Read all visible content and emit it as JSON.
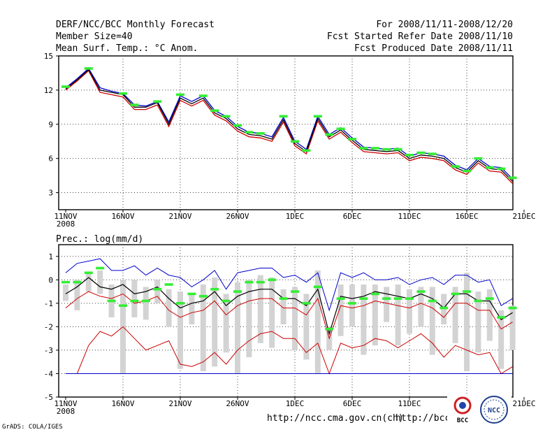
{
  "header": {
    "title": "DERF/NCC/BCC Monthly Forecast",
    "member_size": "Member Size=40",
    "variable": "Mean Surf. Temp.: °C Anom.",
    "period": "For 2008/11/11-2008/12/20",
    "started": "Fcst Started Refer Date 2008/11/10",
    "produced": "Fcst Produced Date 2008/11/11"
  },
  "footer": {
    "credit": "GrADS: COLA/IGES",
    "url1": "http://ncc.cma.gov.cn(ch)",
    "url2": "http://bcc.c",
    "logo_bcc": "BCC",
    "logo_ncc": "NCC"
  },
  "colors": {
    "mean": "#000000",
    "member_high": "#0000cc",
    "member_low": "#cc0000",
    "obs": "#33ee33",
    "spread": "#d3d3d3",
    "grid": "#444444"
  },
  "chart_data": [
    {
      "type": "line",
      "title": "Mean Surf. Temp.: °C Anom.",
      "x_labels": [
        "11NOV",
        "16NOV",
        "21NOV",
        "26NOV",
        "1DEC",
        "6DEC",
        "11DEC",
        "16DEC",
        "21DEC"
      ],
      "x_sublabel": "2008",
      "ylim": [
        1.5,
        15
      ],
      "yticks": [
        "15",
        "12",
        "9",
        "6",
        "3"
      ],
      "x_start_day": 0,
      "mean": [
        12.1,
        12.9,
        13.8,
        12.0,
        11.8,
        11.6,
        10.5,
        10.5,
        10.9,
        9.0,
        11.3,
        10.8,
        11.3,
        10.0,
        9.5,
        8.6,
        8.1,
        8.0,
        7.7,
        9.4,
        7.3,
        6.6,
        9.5,
        7.9,
        8.5,
        7.6,
        6.8,
        6.7,
        6.6,
        6.7,
        6.0,
        6.3,
        6.2,
        6.0,
        5.2,
        4.8,
        5.8,
        5.1,
        5.0,
        4.0
      ],
      "upper": [
        12.2,
        13.0,
        13.9,
        12.2,
        11.9,
        11.7,
        10.7,
        10.6,
        11.0,
        9.2,
        11.5,
        11.0,
        11.5,
        10.2,
        9.7,
        8.8,
        8.3,
        8.2,
        7.9,
        9.6,
        7.5,
        6.8,
        9.7,
        8.1,
        8.7,
        7.8,
        7.0,
        6.9,
        6.8,
        6.9,
        6.2,
        6.5,
        6.4,
        6.2,
        5.4,
        5.0,
        6.0,
        5.3,
        5.2,
        4.2
      ],
      "lower": [
        12.0,
        12.8,
        13.7,
        11.8,
        11.6,
        11.4,
        10.3,
        10.3,
        10.7,
        8.8,
        11.1,
        10.6,
        11.1,
        9.8,
        9.3,
        8.4,
        7.9,
        7.8,
        7.5,
        9.2,
        7.1,
        6.4,
        9.3,
        7.7,
        8.3,
        7.4,
        6.6,
        6.5,
        6.4,
        6.5,
        5.8,
        6.1,
        6.0,
        5.8,
        5.0,
        4.6,
        5.6,
        4.9,
        4.8,
        3.8
      ],
      "obs": [
        12.3,
        null,
        13.9,
        null,
        null,
        11.7,
        10.7,
        null,
        11.0,
        null,
        11.6,
        null,
        11.5,
        10.2,
        9.7,
        8.9,
        8.3,
        8.2,
        null,
        9.7,
        7.5,
        6.7,
        9.7,
        8.1,
        8.6,
        7.7,
        6.9,
        6.9,
        6.8,
        6.8,
        6.3,
        6.5,
        6.4,
        null,
        5.3,
        4.9,
        6.0,
        5.2,
        5.1,
        4.3
      ]
    },
    {
      "type": "line",
      "title": "Prec.: log(mm/d)",
      "x_labels": [
        "11NOV",
        "16NOV",
        "21NOV",
        "26NOV",
        "1DEC",
        "6DEC",
        "11DEC",
        "16DEC",
        "21DEC"
      ],
      "x_sublabel": "2008",
      "ylim": [
        -5,
        1.5
      ],
      "yticks": [
        "1",
        "0",
        "-1",
        "-2",
        "-3",
        "-4",
        "-5"
      ],
      "mean": [
        -0.6,
        -0.3,
        0.1,
        -0.3,
        -0.4,
        -0.2,
        -0.6,
        -0.5,
        -0.3,
        -0.8,
        -1.2,
        -1.0,
        -0.9,
        -0.5,
        -1.1,
        -0.7,
        -0.5,
        -0.4,
        -0.4,
        -0.8,
        -0.8,
        -1.1,
        -0.4,
        -2.3,
        -0.7,
        -0.8,
        -0.7,
        -0.5,
        -0.6,
        -0.7,
        -0.8,
        -0.6,
        -0.8,
        -1.2,
        -0.6,
        -0.6,
        -0.9,
        -0.9,
        -1.7,
        -1.4
      ],
      "ens_max": [
        0.3,
        0.7,
        0.8,
        0.9,
        0.4,
        0.4,
        0.6,
        0.2,
        0.5,
        0.2,
        0.1,
        -0.3,
        0.0,
        0.4,
        -0.4,
        0.3,
        0.4,
        0.5,
        0.5,
        0.1,
        0.2,
        -0.1,
        0.3,
        -1.3,
        0.3,
        0.1,
        0.3,
        0.0,
        0.0,
        0.1,
        -0.2,
        0.0,
        0.1,
        -0.2,
        0.2,
        0.2,
        -0.1,
        0.0,
        -1.1,
        -0.8
      ],
      "ens_p75": [
        -1.2,
        -0.8,
        -0.5,
        -0.7,
        -0.8,
        -0.6,
        -1.0,
        -0.9,
        -0.7,
        -1.3,
        -1.6,
        -1.4,
        -1.3,
        -0.9,
        -1.5,
        -1.1,
        -0.9,
        -0.8,
        -0.8,
        -1.2,
        -1.2,
        -1.5,
        -0.8,
        -2.5,
        -1.1,
        -1.2,
        -1.1,
        -0.9,
        -1.0,
        -1.1,
        -1.2,
        -1.0,
        -1.2,
        -1.6,
        -1.0,
        -1.0,
        -1.3,
        -1.3,
        -2.1,
        -1.8
      ],
      "ens_min_line": [
        -4.0,
        -4.0,
        -2.8,
        -2.2,
        -2.4,
        -2.0,
        -2.5,
        -3.0,
        -2.8,
        -2.6,
        -3.6,
        -3.7,
        -3.5,
        -3.1,
        -3.6,
        -3.0,
        -2.6,
        -2.3,
        -2.2,
        -2.5,
        -2.5,
        -3.1,
        -2.7,
        -4.0,
        -2.7,
        -2.9,
        -2.8,
        -2.5,
        -2.6,
        -2.9,
        -2.6,
        -2.3,
        -2.7,
        -3.3,
        -2.8,
        -3.0,
        -3.2,
        -3.1,
        -4.0,
        -3.7
      ],
      "ens_floor": -4.0,
      "spread_top": [
        -0.2,
        0.0,
        0.3,
        0.4,
        -0.2,
        0.0,
        0.0,
        -0.3,
        0.0,
        -0.4,
        -0.5,
        -0.6,
        -0.2,
        0.1,
        -0.6,
        -0.1,
        0.0,
        0.2,
        0.1,
        -0.4,
        -0.3,
        -0.6,
        0.4,
        -2.0,
        -0.2,
        -0.2,
        -0.2,
        -0.2,
        -0.3,
        -0.2,
        -0.4,
        -0.3,
        -0.3,
        -0.6,
        -0.3,
        0.3,
        -0.5,
        -0.4,
        -1.3,
        -1.1
      ],
      "spread_bottom": [
        -0.9,
        -1.3,
        -0.5,
        -0.6,
        -1.6,
        -4.0,
        -1.6,
        -1.7,
        -1.0,
        -2.0,
        -3.8,
        -1.9,
        -3.9,
        -3.7,
        -3.1,
        -4.0,
        -3.3,
        -2.7,
        -2.9,
        -1.9,
        -3.0,
        -3.4,
        -4.0,
        -3.0,
        -2.4,
        -2.0,
        -3.2,
        -2.8,
        -1.8,
        -2.8,
        -2.3,
        -2.0,
        -3.2,
        -1.9,
        -2.7,
        -3.9,
        -3.1,
        -2.6,
        -3.8,
        -3.0
      ],
      "obs": [
        -0.1,
        -0.1,
        0.3,
        0.5,
        -0.9,
        -1.1,
        -0.9,
        -0.9,
        -0.4,
        -0.2,
        -1.0,
        -0.6,
        -0.7,
        -0.4,
        -0.9,
        -0.5,
        -0.1,
        -0.1,
        0.0,
        -0.8,
        -0.5,
        -1.0,
        -0.3,
        -2.1,
        -0.8,
        -1.0,
        -0.8,
        -0.6,
        -0.8,
        -0.8,
        -0.8,
        -0.5,
        -0.9,
        -1.2,
        -0.6,
        -0.5,
        -0.9,
        -0.8,
        -1.6,
        -1.2
      ]
    }
  ]
}
